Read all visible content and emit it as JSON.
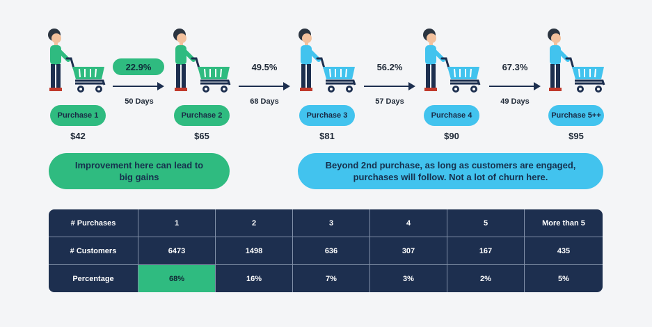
{
  "colors": {
    "green": "#2fbb80",
    "blue": "#42c3ee",
    "navy": "#1d2f4f",
    "background": "#f4f5f7"
  },
  "purchases": [
    {
      "label": "Purchase 1",
      "price": "$42",
      "color": "green"
    },
    {
      "label": "Purchase 2",
      "price": "$65",
      "color": "green"
    },
    {
      "label": "Purchase 3",
      "price": "$81",
      "color": "blue"
    },
    {
      "label": "Purchase 4",
      "price": "$90",
      "color": "blue"
    },
    {
      "label": "Purchase 5++",
      "price": "$95",
      "color": "blue"
    }
  ],
  "transitions": [
    {
      "rate": "22.9%",
      "days": "50 Days"
    },
    {
      "rate": "49.5%",
      "days": "68 Days"
    },
    {
      "rate": "56.2%",
      "days": "57 Days"
    },
    {
      "rate": "67.3%",
      "days": "49 Days"
    }
  ],
  "callouts": {
    "left": "Improvement here can lead to big gains",
    "right": "Beyond 2nd purchase, as long as customers are engaged, purchases will follow. Not a lot of churn here."
  },
  "table": {
    "header": [
      "# Purchases",
      "1",
      "2",
      "3",
      "4",
      "5",
      "More than 5"
    ],
    "customers": [
      "# Customers",
      "6473",
      "1498",
      "636",
      "307",
      "167",
      "435"
    ],
    "percentage": [
      "Percentage",
      "68%",
      "16%",
      "7%",
      "3%",
      "2%",
      "5%"
    ]
  }
}
